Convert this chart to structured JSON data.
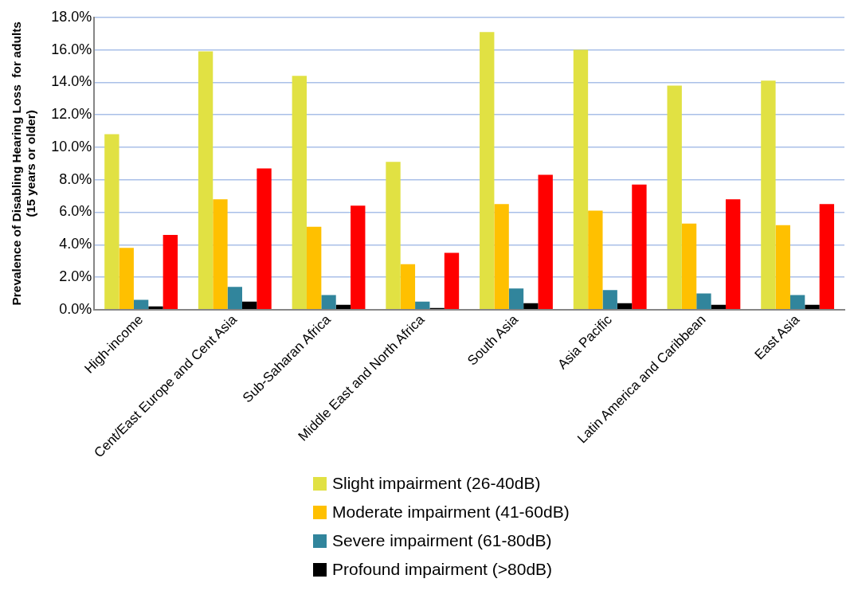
{
  "chart_data": {
    "type": "bar",
    "ylabel": "Prevalence of Disabling Hearing Loss  for adults\n(15 years or older)",
    "categories": [
      "High-income",
      "Cent/East Europe and Cent Asia",
      "Sub-Saharan Africa",
      "Middle East and North Africa",
      "South Asia",
      "Asia Pacific",
      "Latin America and Caribbean",
      "East Asia"
    ],
    "series": [
      {
        "name": "Slight impairment (26-40dB)",
        "color": "#e1e143",
        "values": [
          10.8,
          15.9,
          14.4,
          9.1,
          17.1,
          16.0,
          13.8,
          14.1
        ]
      },
      {
        "name": "Moderate impairment (41-60dB)",
        "color": "#ffc000",
        "values": [
          3.8,
          6.8,
          5.1,
          2.8,
          6.5,
          6.1,
          5.3,
          5.2
        ]
      },
      {
        "name": "Severe impairment (61-80dB)",
        "color": "#31859c",
        "values": [
          0.6,
          1.4,
          0.9,
          0.5,
          1.3,
          1.2,
          1.0,
          0.9
        ]
      },
      {
        "name": "Profound impairment (>80dB)",
        "color": "#000000",
        "values": [
          0.2,
          0.5,
          0.3,
          0.1,
          0.4,
          0.4,
          0.3,
          0.3
        ]
      },
      {
        "color": "#ff0000",
        "values": [
          4.6,
          8.7,
          6.4,
          3.5,
          8.3,
          7.7,
          6.8,
          6.5
        ]
      }
    ],
    "ylim": [
      0,
      18
    ],
    "yticks": [
      {
        "value": 0,
        "label": "0.0%"
      },
      {
        "value": 2,
        "label": "2.0%"
      },
      {
        "value": 4,
        "label": "4.0%"
      },
      {
        "value": 6,
        "label": "6.0%"
      },
      {
        "value": 8,
        "label": "8.0%"
      },
      {
        "value": 10,
        "label": "10.0%"
      },
      {
        "value": 12,
        "label": "12.0%"
      },
      {
        "value": 14,
        "label": "14.0%"
      },
      {
        "value": 16,
        "label": "16.0%"
      },
      {
        "value": 18,
        "label": "18.0%"
      }
    ],
    "grid": "y",
    "legend": "bottom"
  }
}
